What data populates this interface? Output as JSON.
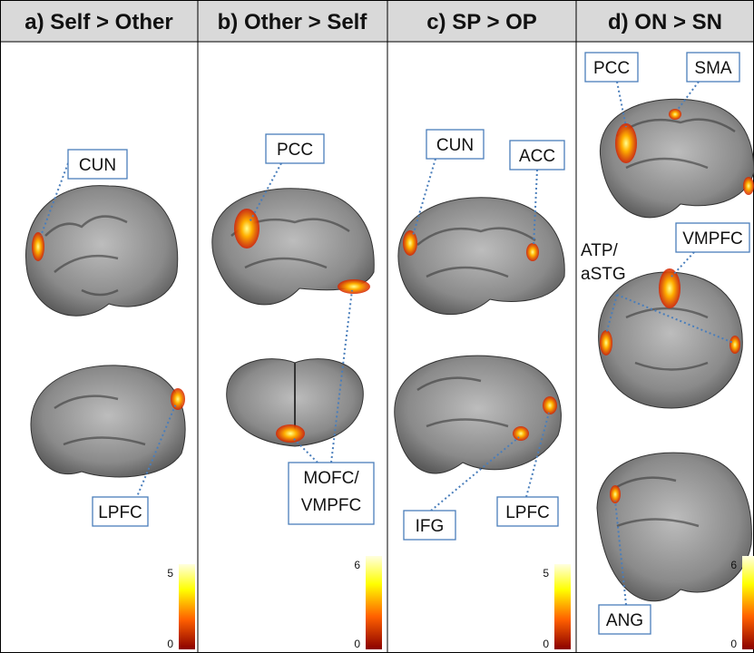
{
  "panels": [
    {
      "title": "a) Self > Other",
      "labels": [
        "CUN",
        "LPFC"
      ],
      "colorbar": {
        "max": 5,
        "min": 0
      }
    },
    {
      "title": "b) Other > Self",
      "labels": [
        "PCC",
        "MOFC/",
        "VMPFC"
      ],
      "colorbar": {
        "max": 6,
        "min": 0
      }
    },
    {
      "title": "c) SP > OP",
      "labels": [
        "CUN",
        "ACC",
        "IFG",
        "LPFC"
      ],
      "colorbar": {
        "max": 5,
        "min": 0
      }
    },
    {
      "title": "d) ON > SN",
      "labels": [
        "PCC",
        "SMA",
        "VMPFC",
        "ANG"
      ],
      "annotation": [
        "ATP/",
        "aSTG"
      ],
      "colorbar": {
        "max": 6,
        "min": 0
      }
    }
  ]
}
